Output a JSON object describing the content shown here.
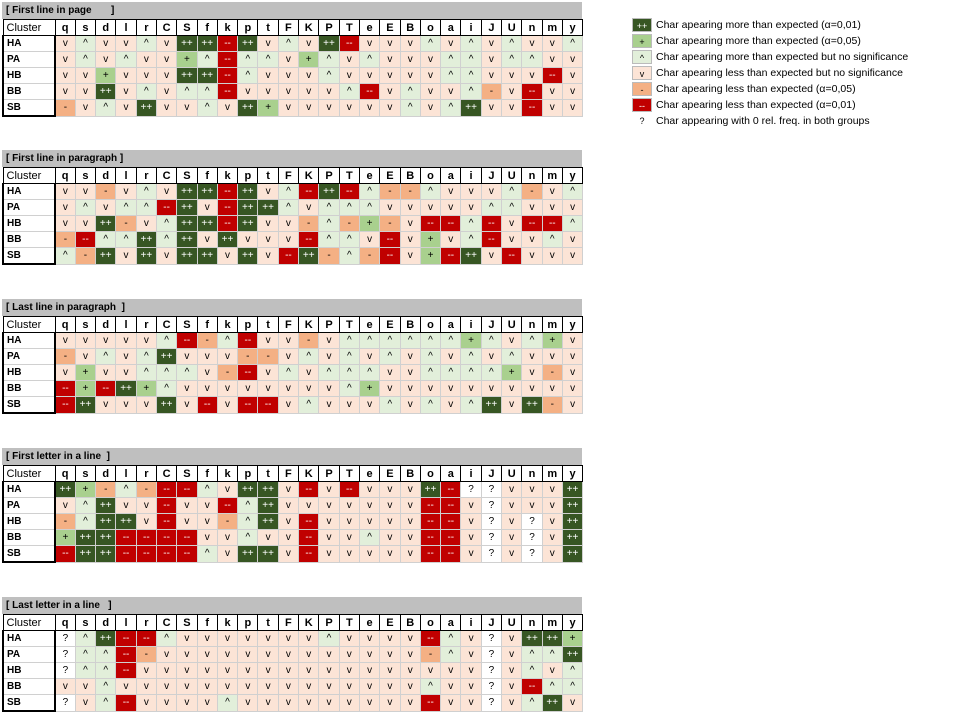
{
  "columns": [
    "q",
    "s",
    "d",
    "l",
    "r",
    "C",
    "S",
    "f",
    "k",
    "p",
    "t",
    "F",
    "K",
    "P",
    "T",
    "e",
    "E",
    "B",
    "o",
    "a",
    "i",
    "J",
    "U",
    "n",
    "m",
    "y"
  ],
  "cluster_header": "Cluster",
  "sections": [
    {
      "title": "[ First line in page       ]",
      "rows": [
        {
          "label": "HA",
          "cells": [
            "v",
            "^",
            "v",
            "v",
            "^",
            "v",
            "++",
            "++",
            "--",
            "++",
            "v",
            "^",
            "v",
            "++",
            "--",
            "v",
            "v",
            "v",
            "^",
            "v",
            "^",
            "v",
            "^",
            "v",
            "v",
            "^"
          ]
        },
        {
          "label": "PA",
          "cells": [
            "v",
            "^",
            "v",
            "^",
            "v",
            "v",
            "+",
            "^",
            "--",
            "^",
            "^",
            "v",
            "+",
            "^",
            "v",
            "^",
            "v",
            "v",
            "v",
            "^",
            "^",
            "v",
            "^",
            "^",
            "v",
            "v"
          ]
        },
        {
          "label": "HB",
          "cells": [
            "v",
            "v",
            "+",
            "v",
            "v",
            "v",
            "++",
            "++",
            "--",
            "^",
            "v",
            "v",
            "v",
            "^",
            "v",
            "v",
            "v",
            "v",
            "v",
            "^",
            "^",
            "v",
            "v",
            "v",
            "--",
            "v"
          ]
        },
        {
          "label": "BB",
          "cells": [
            "v",
            "v",
            "++",
            "v",
            "^",
            "v",
            "^",
            "^",
            "--",
            "v",
            "v",
            "v",
            "v",
            "v",
            "^",
            "--",
            "v",
            "^",
            "v",
            "v",
            "^",
            "-",
            "v",
            "--",
            "v",
            "v"
          ]
        },
        {
          "label": "SB",
          "cells": [
            "-",
            "v",
            "^",
            "v",
            "++",
            "v",
            "v",
            "^",
            "v",
            "++",
            "+",
            "v",
            "v",
            "v",
            "v",
            "v",
            "v",
            "^",
            "v",
            "^",
            "++",
            "v",
            "v",
            "--",
            "v",
            "v"
          ]
        }
      ]
    },
    {
      "title": "[ First line in paragraph ]",
      "rows": [
        {
          "label": "HA",
          "cells": [
            "v",
            "v",
            "-",
            "v",
            "^",
            "v",
            "++",
            "++",
            "--",
            "++",
            "v",
            "^",
            "--",
            "++",
            "--",
            "^",
            "-",
            "-",
            "^",
            "v",
            "v",
            "v",
            "^",
            "-",
            "v",
            "^"
          ]
        },
        {
          "label": "PA",
          "cells": [
            "v",
            "^",
            "v",
            "^",
            "^",
            "--",
            "++",
            "v",
            "--",
            "++",
            "++",
            "^",
            "v",
            "^",
            "^",
            "^",
            "v",
            "v",
            "v",
            "v",
            "v",
            "^",
            "^",
            "v",
            "v",
            "v"
          ]
        },
        {
          "label": "HB",
          "cells": [
            "v",
            "v",
            "++",
            "-",
            "v",
            "^",
            "++",
            "++",
            "--",
            "++",
            "v",
            "v",
            "-",
            "^",
            "-",
            "+",
            "-",
            "v",
            "--",
            "--",
            "^",
            "--",
            "v",
            "--",
            "--",
            "^"
          ]
        },
        {
          "label": "BB",
          "cells": [
            "-",
            "--",
            "^",
            "^",
            "++",
            "^",
            "++",
            "v",
            "++",
            "v",
            "v",
            "v",
            "--",
            "^",
            "^",
            "v",
            "--",
            "v",
            "+",
            "v",
            "^",
            "--",
            "v",
            "v",
            "^",
            "v"
          ]
        },
        {
          "label": "SB",
          "cells": [
            "^",
            "-",
            "++",
            "v",
            "++",
            "v",
            "++",
            "++",
            "v",
            "++",
            "v",
            "--",
            "++",
            "-",
            "^",
            "-",
            "--",
            "v",
            "+",
            "--",
            "++",
            "v",
            "--",
            "v",
            "v",
            "v"
          ]
        }
      ]
    },
    {
      "title": "[ Last line in paragraph  ]",
      "rows": [
        {
          "label": "HA",
          "cells": [
            "v",
            "v",
            "v",
            "v",
            "v",
            "^",
            "--",
            "-",
            "^",
            "--",
            "v",
            "v",
            "-",
            "v",
            "^",
            "^",
            "^",
            "^",
            "^",
            "^",
            "+",
            "^",
            "v",
            "^",
            "+",
            "v"
          ]
        },
        {
          "label": "PA",
          "cells": [
            "-",
            "v",
            "^",
            "v",
            "^",
            "++",
            "v",
            "v",
            "v",
            "-",
            "-",
            "v",
            "^",
            "v",
            "^",
            "v",
            "^",
            "v",
            "^",
            "v",
            "^",
            "v",
            "^",
            "v",
            "v",
            "v"
          ]
        },
        {
          "label": "HB",
          "cells": [
            "v",
            "+",
            "v",
            "v",
            "^",
            "^",
            "^",
            "v",
            "-",
            "--",
            "v",
            "^",
            "v",
            "^",
            "^",
            "^",
            "v",
            "v",
            "^",
            "^",
            "^",
            "^",
            "+",
            "v",
            "-",
            "v"
          ]
        },
        {
          "label": "BB",
          "cells": [
            "--",
            "+",
            "--",
            "++",
            "+",
            "^",
            "v",
            "v",
            "v",
            "v",
            "v",
            "v",
            "v",
            "v",
            "^",
            "+",
            "v",
            "v",
            "v",
            "v",
            "v",
            "v",
            "v",
            "v",
            "v",
            "v"
          ]
        },
        {
          "label": "SB",
          "cells": [
            "--",
            "++",
            "v",
            "v",
            "v",
            "++",
            "v",
            "--",
            "v",
            "--",
            "--",
            "v",
            "^",
            "v",
            "v",
            "v",
            "^",
            "v",
            "^",
            "v",
            "^",
            "++",
            "v",
            "++",
            "-",
            "v"
          ]
        }
      ]
    },
    {
      "title": "[ First letter in a line  ]",
      "rows": [
        {
          "label": "HA",
          "cells": [
            "++",
            "+",
            "-",
            "^",
            "-",
            "--",
            "--",
            "^",
            "v",
            "++",
            "++",
            "v",
            "--",
            "v",
            "--",
            "v",
            "v",
            "v",
            "++",
            "--",
            "?",
            "?",
            "v",
            "v",
            "v",
            "++"
          ]
        },
        {
          "label": "PA",
          "cells": [
            "v",
            "^",
            "++",
            "v",
            "v",
            "--",
            "v",
            "v",
            "--",
            "^",
            "++",
            "v",
            "v",
            "v",
            "v",
            "v",
            "v",
            "v",
            "--",
            "--",
            "v",
            "?",
            "v",
            "v",
            "v",
            "++"
          ]
        },
        {
          "label": "HB",
          "cells": [
            "-",
            "^",
            "++",
            "++",
            "v",
            "--",
            "v",
            "v",
            "-",
            "^",
            "++",
            "v",
            "--",
            "v",
            "v",
            "v",
            "v",
            "v",
            "--",
            "--",
            "v",
            "?",
            "v",
            "?",
            "v",
            "++"
          ]
        },
        {
          "label": "BB",
          "cells": [
            "+",
            "++",
            "++",
            "--",
            "--",
            "--",
            "--",
            "v",
            "v",
            "^",
            "v",
            "v",
            "--",
            "v",
            "v",
            "^",
            "v",
            "v",
            "--",
            "--",
            "v",
            "?",
            "v",
            "?",
            "v",
            "++"
          ]
        },
        {
          "label": "SB",
          "cells": [
            "--",
            "++",
            "++",
            "--",
            "--",
            "--",
            "--",
            "^",
            "v",
            "++",
            "++",
            "v",
            "--",
            "v",
            "v",
            "v",
            "v",
            "v",
            "--",
            "--",
            "v",
            "?",
            "v",
            "?",
            "v",
            "++"
          ]
        }
      ]
    },
    {
      "title": "[ Last letter in a line   ]",
      "rows": [
        {
          "label": "HA",
          "cells": [
            "?",
            "^",
            "++",
            "--",
            "--",
            "^",
            "v",
            "v",
            "v",
            "v",
            "v",
            "v",
            "v",
            "^",
            "v",
            "v",
            "v",
            "v",
            "--",
            "^",
            "v",
            "?",
            "v",
            "++",
            "++",
            "+"
          ]
        },
        {
          "label": "PA",
          "cells": [
            "?",
            "^",
            "^",
            "--",
            "-",
            "v",
            "v",
            "v",
            "v",
            "v",
            "v",
            "v",
            "v",
            "v",
            "v",
            "v",
            "v",
            "v",
            "-",
            "^",
            "v",
            "?",
            "v",
            "^",
            "^",
            "++"
          ]
        },
        {
          "label": "HB",
          "cells": [
            "?",
            "^",
            "^",
            "--",
            "v",
            "v",
            "v",
            "v",
            "v",
            "v",
            "v",
            "v",
            "v",
            "v",
            "v",
            "v",
            "v",
            "v",
            "v",
            "v",
            "v",
            "?",
            "v",
            "^",
            "v",
            "^"
          ]
        },
        {
          "label": "BB",
          "cells": [
            "v",
            "v",
            "^",
            "v",
            "v",
            "v",
            "v",
            "v",
            "v",
            "v",
            "v",
            "v",
            "v",
            "v",
            "v",
            "v",
            "v",
            "v",
            "^",
            "v",
            "v",
            "?",
            "v",
            "--",
            "^",
            "^"
          ]
        },
        {
          "label": "SB",
          "cells": [
            "?",
            "v",
            "^",
            "--",
            "v",
            "v",
            "v",
            "v",
            "^",
            "v",
            "v",
            "v",
            "v",
            "v",
            "v",
            "v",
            "v",
            "v",
            "--",
            "v",
            "v",
            "?",
            "v",
            "^",
            "++",
            "v"
          ]
        }
      ]
    }
  ],
  "legend": [
    {
      "symbol": "++",
      "cls": "c-pp",
      "text": "Char apearing more than expected (α=0,01)"
    },
    {
      "symbol": "+",
      "cls": "c-p",
      "text": "Char apearing more than expected (α=0,05)"
    },
    {
      "symbol": "^",
      "cls": "c-c",
      "text": "Char apearing more than expected but no significance"
    },
    {
      "symbol": "v",
      "cls": "c-v",
      "text": "Char apearing less than expected but no significance"
    },
    {
      "symbol": "-",
      "cls": "c-m",
      "text": "Char apearing less than expected (α=0,05)"
    },
    {
      "symbol": "--",
      "cls": "c-mm",
      "text": "Char apearing less than expected (α=0,01)"
    },
    {
      "symbol": "?",
      "cls": "c-q",
      "text": "Char appearing with 0 rel. freq. in both groups"
    }
  ],
  "colors": {
    "strong_more": "#375623",
    "more": "#a9d08e",
    "slight_more": "#e2efda",
    "slight_less": "#fce4d6",
    "less": "#f4b084",
    "strong_less": "#c00000",
    "header_bar": "#bfbfbf"
  }
}
